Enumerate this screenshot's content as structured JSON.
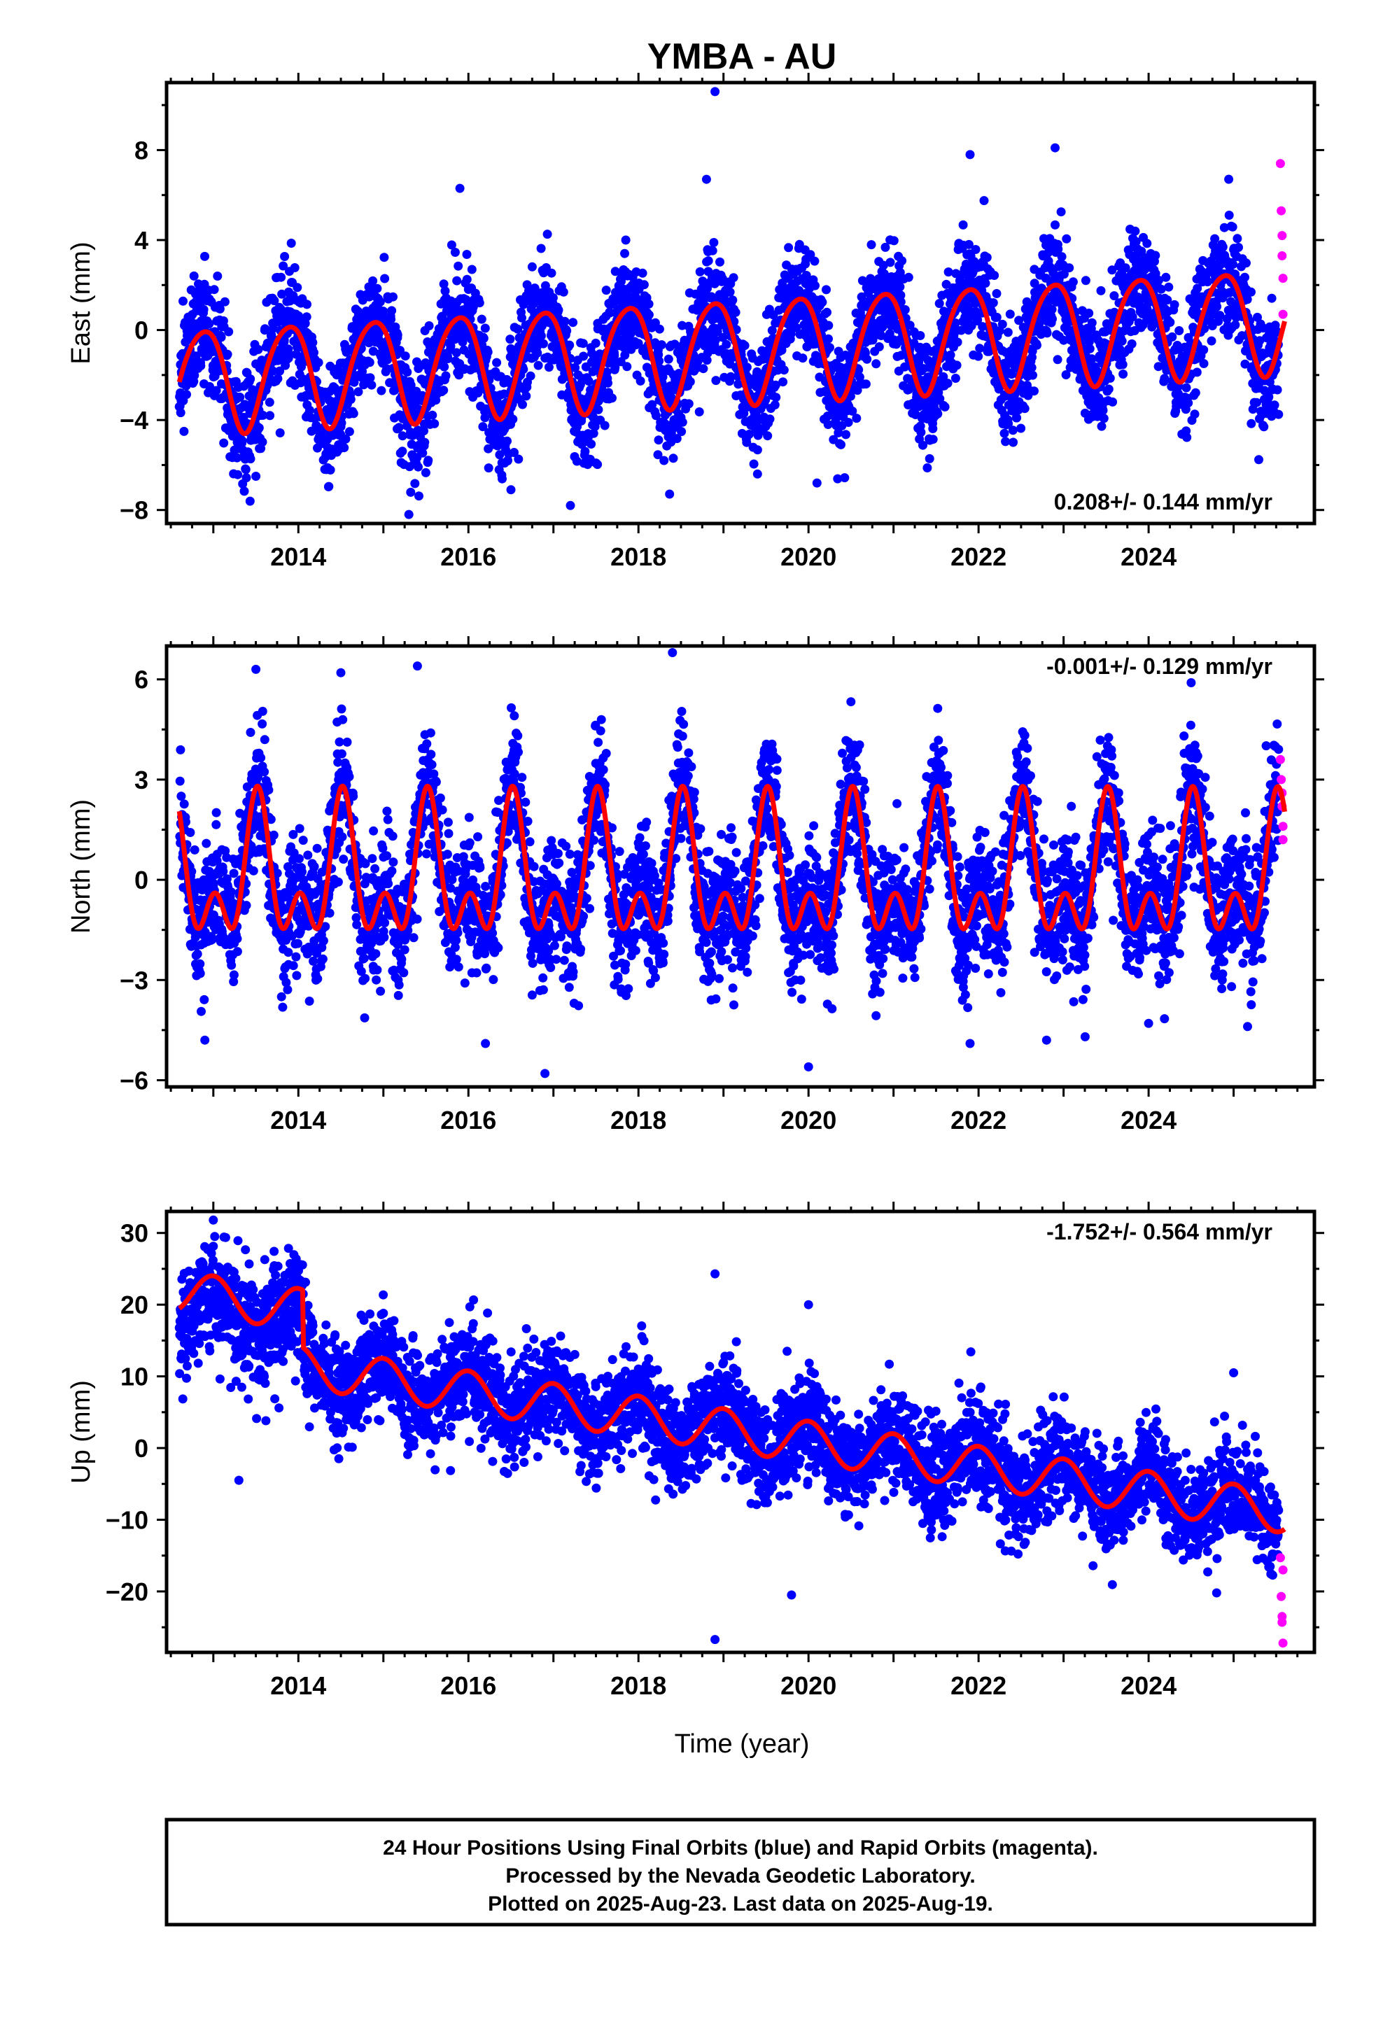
{
  "chart_data": {
    "type": "scatter",
    "title": "YMBA - AU",
    "xlabel": "Time (year)",
    "xlim": [
      2012.45,
      2025.95
    ],
    "x_ticks": [
      "2014",
      "2016",
      "2018",
      "2020",
      "2022",
      "2024"
    ],
    "colors": {
      "final": "#0000ff",
      "rapid": "#ff00ff",
      "model": "#ff0000",
      "frame": "#000000"
    },
    "panels": [
      {
        "name": "east",
        "ylabel": "East (mm)",
        "ylim": [
          -8.6,
          11.0
        ],
        "y_ticks": [
          "8",
          "4",
          "0",
          "−4",
          "−8"
        ],
        "rate_text": "0.208+/- 0.144 mm/yr",
        "rate_position": "bottom-right",
        "model": {
          "offset": -0.85,
          "rate": 0.208,
          "ref_year": 2019.0,
          "annual_amp": 2.3,
          "annual_peak": 2019.88,
          "semi_amp": 0.3,
          "semi_peak": 2019.6
        },
        "scatter": {
          "sigma": 1.25,
          "seed": 11
        },
        "outliers": [
          [
            2018.9,
            10.6
          ],
          [
            2015.3,
            -8.2
          ],
          [
            2017.2,
            -7.8
          ],
          [
            2016.5,
            -7.1
          ],
          [
            2013.5,
            -6.5
          ],
          [
            2019.4,
            -6.4
          ],
          [
            2020.1,
            -6.8
          ],
          [
            2018.3,
            -5.8
          ],
          [
            2022.9,
            8.1
          ],
          [
            2021.9,
            7.8
          ],
          [
            2018.8,
            6.7
          ],
          [
            2015.9,
            6.3
          ]
        ],
        "rapid": [
          [
            2025.55,
            7.4
          ],
          [
            2025.56,
            5.3
          ],
          [
            2025.57,
            4.2
          ],
          [
            2025.57,
            3.3
          ],
          [
            2025.58,
            2.3
          ],
          [
            2025.58,
            0.7
          ]
        ]
      },
      {
        "name": "north",
        "ylabel": "North (mm)",
        "ylim": [
          -6.2,
          7.0
        ],
        "y_ticks": [
          "6",
          "3",
          "0",
          "−3",
          "−6"
        ],
        "rate_text": "-0.001+/- 0.129 mm/yr",
        "rate_position": "top-right",
        "model": {
          "offset": 0.0,
          "rate": -0.001,
          "ref_year": 2019.0,
          "annual_amp": 1.6,
          "annual_peak": 2019.52,
          "semi_amp": 1.2,
          "semi_peak": 2019.52
        },
        "scatter": {
          "sigma": 0.95,
          "seed": 23
        },
        "outliers": [
          [
            2018.4,
            6.8
          ],
          [
            2016.9,
            -5.8
          ],
          [
            2020.0,
            -5.6
          ],
          [
            2012.9,
            -4.8
          ],
          [
            2016.2,
            -4.9
          ],
          [
            2021.9,
            -4.9
          ],
          [
            2022.8,
            -4.8
          ],
          [
            2024.0,
            -4.3
          ],
          [
            2014.5,
            6.2
          ],
          [
            2015.4,
            6.4
          ],
          [
            2013.5,
            6.3
          ],
          [
            2024.5,
            5.9
          ]
        ],
        "rapid": [
          [
            2025.55,
            3.6
          ],
          [
            2025.56,
            3.0
          ],
          [
            2025.57,
            2.6
          ],
          [
            2025.57,
            2.2
          ],
          [
            2025.58,
            1.6
          ],
          [
            2025.58,
            1.2
          ]
        ]
      },
      {
        "name": "up",
        "ylabel": "Up (mm)",
        "ylim": [
          -28.5,
          33.0
        ],
        "y_ticks": [
          "30",
          "20",
          "10",
          "0",
          "−10",
          "−20"
        ],
        "rate_text": "-1.752+/- 0.564 mm/yr",
        "rate_position": "top-right",
        "model": {
          "offset": 2.6,
          "rate": -1.752,
          "ref_year": 2019.0,
          "annual_amp": 2.9,
          "annual_peak": 2019.0,
          "semi_amp": 0.0,
          "semi_peak": 2019.0,
          "step_year": 2014.05,
          "step_size": -8.0
        },
        "scatter": {
          "sigma": 3.6,
          "seed": 37
        },
        "early_cluster": {
          "from": 2012.6,
          "to": 2014.05,
          "mean": 18.5,
          "sigma": 4.0
        },
        "outliers": [
          [
            2013.0,
            31.8
          ],
          [
            2018.9,
            -26.7
          ],
          [
            2018.9,
            24.3
          ],
          [
            2013.3,
            -4.5
          ],
          [
            2019.8,
            -20.5
          ],
          [
            2025.0,
            10.5
          ],
          [
            2024.8,
            -20.2
          ],
          [
            2017.0,
            13.4
          ],
          [
            2015.0,
            18.8
          ],
          [
            2020.0,
            20.0
          ]
        ],
        "rapid": [
          [
            2025.55,
            -15.3
          ],
          [
            2025.56,
            -20.7
          ],
          [
            2025.57,
            -23.5
          ],
          [
            2025.57,
            -24.3
          ],
          [
            2025.58,
            -27.2
          ],
          [
            2025.58,
            -17.0
          ]
        ]
      }
    ]
  },
  "footer": {
    "line1": "24 Hour Positions Using Final Orbits (blue) and Rapid Orbits (magenta).",
    "line2": "Processed by the Nevada Geodetic Laboratory.",
    "line3": "Plotted on 2025-Aug-23. Last data on 2025-Aug-19."
  }
}
